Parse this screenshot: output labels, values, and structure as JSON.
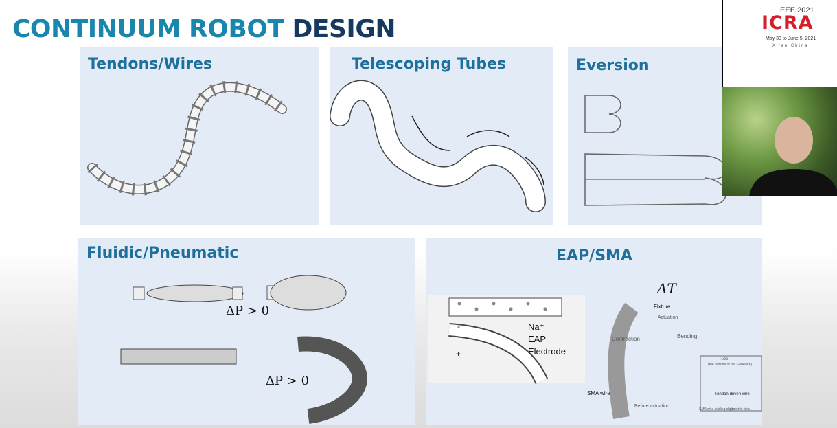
{
  "title": {
    "part1": "CONTINUUM ROBOT",
    "part2": "DESIGN"
  },
  "panels": {
    "tendons": {
      "label": "Tendons/Wires"
    },
    "telescoping": {
      "label": "Telescoping Tubes"
    },
    "eversion": {
      "label": "Eversion"
    },
    "fluidic": {
      "label": "Fluidic/Pneumatic",
      "eq1": "ΔP > 0",
      "eq2": "ΔP > 0"
    },
    "eap": {
      "label": "EAP/SMA",
      "delta_t": "ΔT",
      "na": "Na⁺",
      "eap": "EAP",
      "electrode": "Electrode",
      "minus": "-",
      "plus": "+",
      "fixture": "Fixture",
      "actuation": "Actuation",
      "contraction": "Contraction",
      "bending": "Bending",
      "sma_wire": "SMA wire",
      "before_actuation": "Before actuation",
      "tube": "Tube",
      "tube_note": "(the outside of the SMA wire)",
      "tendon_wire": "Tendon-driven wire",
      "sma_note": "SMA wire (sliding slip)",
      "isometric": "Isometric view"
    }
  },
  "logo": {
    "top": "IEEE 2021",
    "name": "ICRA",
    "dates": "May 30 to June 5, 2021",
    "city": "Xi'an China"
  }
}
